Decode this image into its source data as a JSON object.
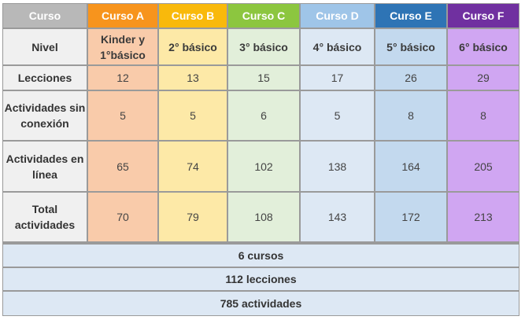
{
  "header": {
    "corner": "Curso",
    "courses": [
      {
        "name": "Curso A",
        "color": "#f7941d",
        "tint": "#f9cbaa"
      },
      {
        "name": "Curso B",
        "color": "#f9b90b",
        "tint": "#fde9a7"
      },
      {
        "name": "Curso C",
        "color": "#8cc63f",
        "tint": "#e2efda"
      },
      {
        "name": "Curso D",
        "color": "#9fc5e8",
        "tint": "#dde8f4"
      },
      {
        "name": "Curso E",
        "color": "#2e74b5",
        "tint": "#c3d9ee"
      },
      {
        "name": "Curso F",
        "color": "#7030a0",
        "tint": "#d0a6f2"
      }
    ],
    "corner_color": "#b8b8b8"
  },
  "rows": [
    {
      "label": "Nivel",
      "values": [
        "Kinder y 1°básico",
        "2° básico",
        "3° básico",
        "4° básico",
        "5° básico",
        "6° básico"
      ]
    },
    {
      "label": "Lecciones",
      "values": [
        "12",
        "13",
        "15",
        "17",
        "26",
        "29"
      ]
    },
    {
      "label": "Actividades sin conexión",
      "values": [
        "5",
        "5",
        "6",
        "5",
        "8",
        "8"
      ]
    },
    {
      "label": "Actividades en línea",
      "values": [
        "65",
        "74",
        "102",
        "138",
        "164",
        "205"
      ]
    },
    {
      "label": "Total actividades",
      "values": [
        "70",
        "79",
        "108",
        "143",
        "172",
        "213"
      ]
    }
  ],
  "summary": [
    "6 cursos",
    "112 lecciones",
    "785 actividades"
  ]
}
